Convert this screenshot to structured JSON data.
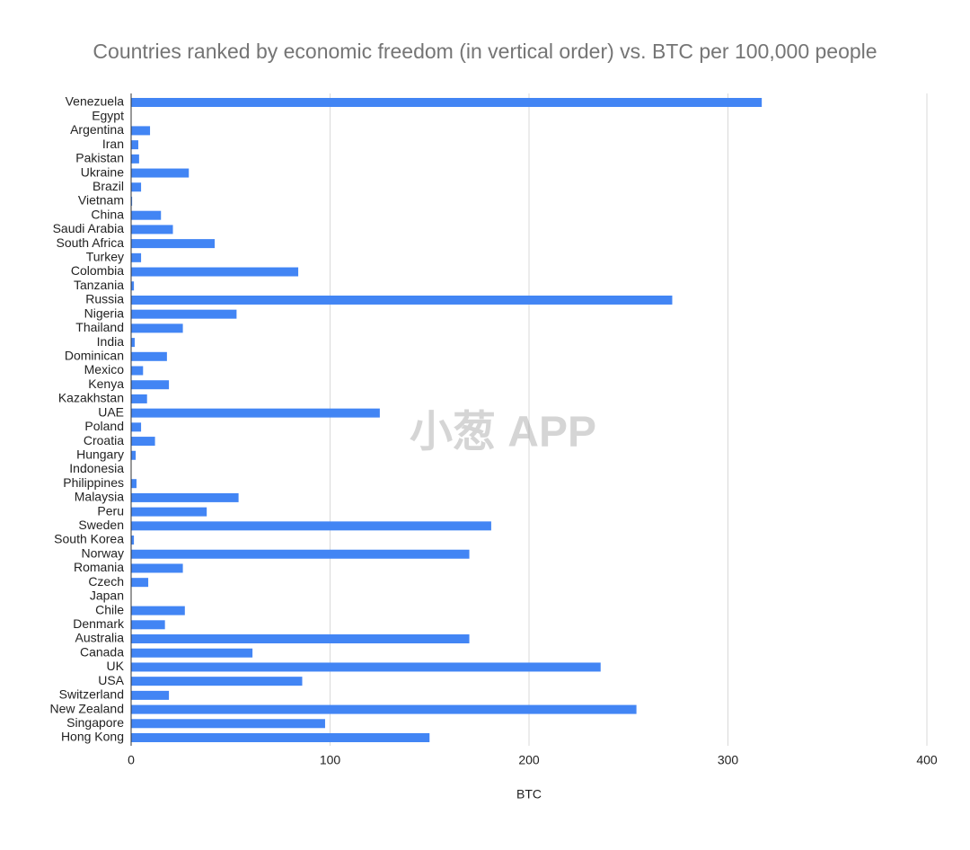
{
  "chart_data": {
    "type": "hbar",
    "title": "Countries ranked by economic freedom (in vertical order) vs. BTC per 100,000 people",
    "x_label": "BTC",
    "watermark": "小葱 APP",
    "categories": [
      "Venezuela",
      "Egypt",
      "Argentina",
      "Iran",
      "Pakistan",
      "Ukraine",
      "Brazil",
      "Vietnam",
      "China",
      "Saudi Arabia",
      "South Africa",
      "Turkey",
      "Colombia",
      "Tanzania",
      "Russia",
      "Nigeria",
      "Thailand",
      "India",
      "Dominican",
      "Mexico",
      "Kenya",
      "Kazakhstan",
      "UAE",
      "Poland",
      "Croatia",
      "Hungary",
      "Indonesia",
      "Philippines",
      "Malaysia",
      "Peru",
      "Sweden",
      "South Korea",
      "Norway",
      "Romania",
      "Czech",
      "Japan",
      "Chile",
      "Denmark",
      "Australia",
      "Canada",
      "UK",
      "USA",
      "Switzerland",
      "New Zealand",
      "Singapore",
      "Hong Kong"
    ],
    "values": [
      317,
      0,
      9.5,
      3.6,
      4,
      29,
      5,
      0.5,
      15,
      21,
      42,
      5,
      84,
      1.4,
      272,
      53,
      26,
      1.8,
      18,
      6,
      19,
      8,
      125,
      5,
      12,
      2.3,
      0,
      2.7,
      54,
      38,
      181,
      1.4,
      170,
      26,
      8.6,
      0,
      27,
      17,
      170,
      61,
      236,
      86,
      19,
      254,
      97.5,
      150
    ],
    "color": "#4285f4",
    "xlim": [
      0,
      400
    ],
    "xticks": [
      0,
      100,
      200,
      300,
      400
    ],
    "grid": true
  }
}
